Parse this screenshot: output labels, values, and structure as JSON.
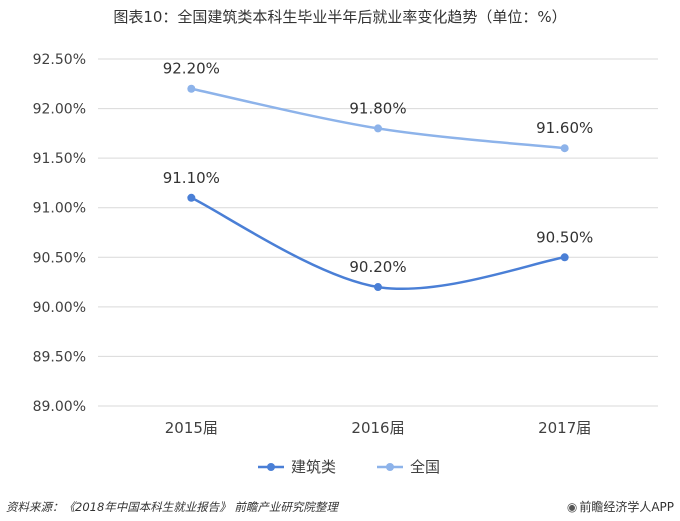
{
  "title": "图表10：全国建筑类本科生毕业半年后就业率变化趋势（单位：%）",
  "chart_data": {
    "type": "line",
    "categories": [
      "2015届",
      "2016届",
      "2017届"
    ],
    "series": [
      {
        "name": "建筑类",
        "values": [
          91.1,
          90.2,
          90.5
        ],
        "color": "#4a7fd6",
        "labels": [
          "91.10%",
          "90.20%",
          "90.50%"
        ]
      },
      {
        "name": "全国",
        "values": [
          92.2,
          91.8,
          91.6
        ],
        "color": "#8db3ea",
        "labels": [
          "92.20%",
          "91.80%",
          "91.60%"
        ]
      }
    ],
    "ylim": [
      89.0,
      92.5
    ],
    "yticks": [
      "89.00%",
      "89.50%",
      "90.00%",
      "90.50%",
      "91.00%",
      "91.50%",
      "92.00%",
      "92.50%"
    ],
    "ytick_values": [
      89.0,
      89.5,
      90.0,
      90.5,
      91.0,
      91.5,
      92.0,
      92.5
    ],
    "grid": true,
    "legend": "bottom-center",
    "smooth": true
  },
  "footer": {
    "source": "资料来源：《2018年中国本科生就业报告》 前瞻产业研究院整理",
    "brand": "前瞻经济学人APP"
  }
}
